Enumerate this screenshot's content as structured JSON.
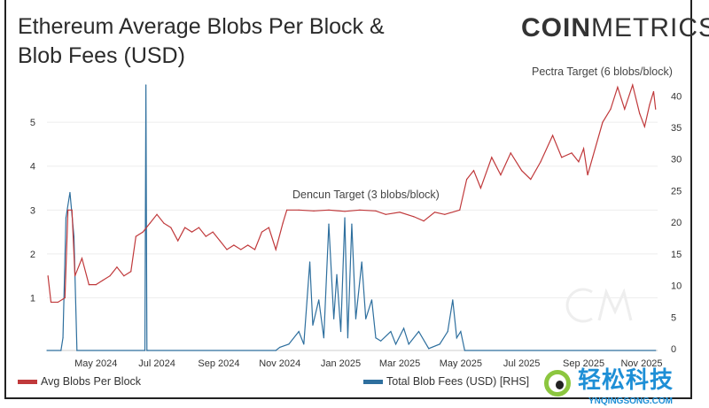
{
  "chart_data": {
    "type": "line",
    "title": "Ethereum Average Blobs Per Block & Blob Fees (USD)",
    "brand": "COINMETRICS",
    "x_ticks": [
      "May 2024",
      "Jul 2024",
      "Sep 2024",
      "Nov 2024",
      "Jan 2025",
      "Mar 2025",
      "May 2025",
      "Jul 2025",
      "Sep 2025",
      "Nov 2025"
    ],
    "x_range": [
      "2024-03-13",
      "2025-11-14"
    ],
    "y_left": {
      "ticks": [
        1,
        2,
        3,
        4,
        5
      ],
      "ylim": [
        -0.2,
        5.85
      ]
    },
    "y_right": {
      "ticks": [
        0,
        5,
        10,
        15,
        20,
        25,
        30,
        35,
        40
      ],
      "ylim": [
        0,
        42
      ]
    },
    "grid": true,
    "legend_position": "bottom",
    "annotations": [
      "Dencun Target (3 blobs/block)",
      "Pectra Target (6 blobs/block)"
    ],
    "series": [
      {
        "name": "Avg Blobs Per Block",
        "axis": "left",
        "color": "#c0393b",
        "x": [
          "2024-03-14",
          "2024-03-17",
          "2024-03-24",
          "2024-03-31",
          "2024-04-03",
          "2024-04-07",
          "2024-04-10",
          "2024-04-17",
          "2024-04-24",
          "2024-05-01",
          "2024-05-08",
          "2024-05-15",
          "2024-05-22",
          "2024-05-29",
          "2024-06-05",
          "2024-06-10",
          "2024-06-17",
          "2024-06-24",
          "2024-07-01",
          "2024-07-08",
          "2024-07-15",
          "2024-07-22",
          "2024-07-29",
          "2024-08-05",
          "2024-08-12",
          "2024-08-19",
          "2024-08-26",
          "2024-09-02",
          "2024-09-09",
          "2024-09-16",
          "2024-09-23",
          "2024-09-30",
          "2024-10-07",
          "2024-10-14",
          "2024-10-21",
          "2024-10-28",
          "2024-11-04",
          "2024-11-08",
          "2024-11-20",
          "2024-12-05",
          "2024-12-20",
          "2025-01-05",
          "2025-01-20",
          "2025-02-05",
          "2025-02-15",
          "2025-03-01",
          "2025-03-15",
          "2025-03-25",
          "2025-04-05",
          "2025-04-15",
          "2025-04-30",
          "2025-05-07",
          "2025-05-14",
          "2025-05-21",
          "2025-06-01",
          "2025-06-10",
          "2025-06-20",
          "2025-07-01",
          "2025-07-10",
          "2025-07-20",
          "2025-08-01",
          "2025-08-10",
          "2025-08-20",
          "2025-08-27",
          "2025-09-01",
          "2025-09-05",
          "2025-09-10",
          "2025-09-20",
          "2025-09-28",
          "2025-10-05",
          "2025-10-12",
          "2025-10-20",
          "2025-10-27",
          "2025-11-01",
          "2025-11-06",
          "2025-11-10",
          "2025-11-12"
        ],
        "values": [
          1.5,
          0.9,
          0.9,
          1.0,
          3.0,
          3.0,
          1.5,
          1.9,
          1.3,
          1.3,
          1.4,
          1.5,
          1.7,
          1.5,
          1.6,
          2.4,
          2.5,
          2.7,
          2.9,
          2.7,
          2.6,
          2.3,
          2.6,
          2.5,
          2.6,
          2.4,
          2.5,
          2.3,
          2.1,
          2.2,
          2.1,
          2.2,
          2.1,
          2.5,
          2.6,
          2.1,
          2.7,
          3.0,
          3.0,
          2.98,
          3.0,
          2.97,
          3.0,
          2.98,
          2.9,
          2.95,
          2.85,
          2.75,
          2.95,
          2.9,
          3.0,
          3.7,
          3.9,
          3.5,
          4.2,
          3.8,
          4.3,
          3.9,
          3.7,
          4.1,
          4.7,
          4.2,
          4.3,
          4.1,
          4.4,
          3.8,
          4.2,
          5.0,
          5.3,
          5.8,
          5.3,
          5.85,
          5.2,
          4.9,
          5.4,
          5.7,
          5.3
        ]
      },
      {
        "name": "Total Blob Fees (USD) [RHS]",
        "axis": "right",
        "color": "#2e6f9e",
        "x": [
          "2024-03-13",
          "2024-03-27",
          "2024-03-29",
          "2024-04-01",
          "2024-04-05",
          "2024-04-09",
          "2024-04-12",
          "2024-06-19",
          "2024-06-20",
          "2024-06-21",
          "2024-06-22",
          "2024-10-28",
          "2024-11-01",
          "2024-11-10",
          "2024-11-20",
          "2024-11-25",
          "2024-12-01",
          "2024-12-04",
          "2024-12-10",
          "2024-12-15",
          "2024-12-20",
          "2024-12-25",
          "2024-12-28",
          "2025-01-01",
          "2025-01-05",
          "2025-01-08",
          "2025-01-12",
          "2025-01-16",
          "2025-01-22",
          "2025-01-26",
          "2025-02-01",
          "2025-02-05",
          "2025-02-10",
          "2025-02-20",
          "2025-02-25",
          "2025-03-05",
          "2025-03-10",
          "2025-03-20",
          "2025-03-30",
          "2025-04-10",
          "2025-04-18",
          "2025-04-23",
          "2025-04-27",
          "2025-05-01",
          "2025-05-05",
          "2025-11-12"
        ],
        "values": [
          0,
          0,
          2,
          21,
          25,
          18,
          0,
          0,
          42,
          0,
          0,
          0,
          0.5,
          1,
          3,
          1,
          14,
          4,
          8,
          2,
          20,
          5,
          12,
          3,
          21,
          2,
          20,
          5,
          14,
          5,
          8,
          2,
          1.5,
          3,
          1,
          3.5,
          1,
          3,
          0.3,
          1,
          3,
          8,
          2,
          3,
          0,
          0
        ]
      }
    ]
  }
}
